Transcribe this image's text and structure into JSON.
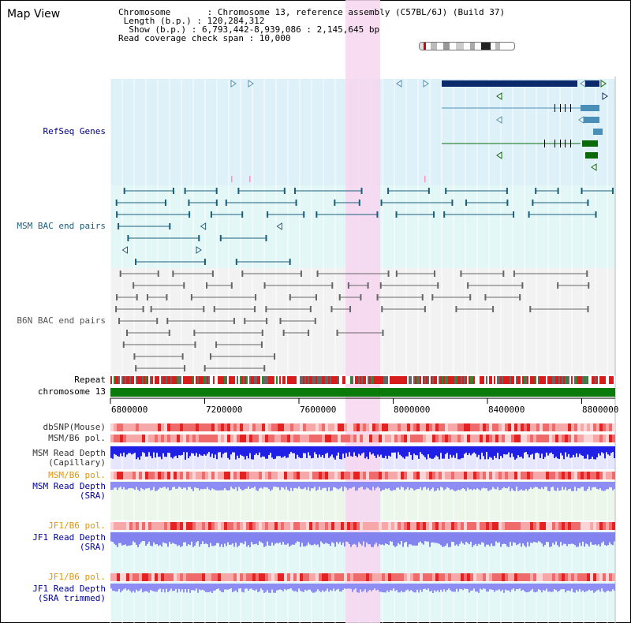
{
  "page": {
    "title": "Map View"
  },
  "header": {
    "chromosome_line": "Chromosome       : Chromosome 13, reference assembly (C57BL/6J) (Build 37)",
    "length_line": " Length (b.p.) : 120,284,312",
    "show_line": "  Show (b.p.) : 6,793,442-8,939,086 : 2,145,645 bp",
    "coverage_line": "Read coverage check span : 10,000"
  },
  "colors": {
    "refseq": "#0a2a6b",
    "refseq_light": "#4a8fb8",
    "refseq_green": "#0a6a0a",
    "msm": "#1a5f7a",
    "b6n": "#555555",
    "highlight": "#f7d6f0",
    "panel_blue": "#dff1f8",
    "panel_cyan": "#e4f7f7",
    "panel_gray": "#f1f1f1",
    "green_panel": "#e9f8e9"
  },
  "tracks": {
    "refseq": {
      "label": "RefSeq Genes",
      "color": "#00007f"
    },
    "msm_bac": {
      "label": "MSM BAC end pairs",
      "color": "#1a5f7a"
    },
    "b6n_bac": {
      "label": "B6N BAC end pairs",
      "color": "#555555"
    },
    "repeat": {
      "label": "Repeat"
    },
    "chrom": {
      "label": "chromosome 13"
    },
    "dbsnp": {
      "label": "dbSNP(Mouse)",
      "color": "#333333"
    },
    "msmb6_1": {
      "label": "MSM/B6 pol.",
      "color": "#333333"
    },
    "msm_cap": {
      "label": "MSM Read Depth\n(Capillary)",
      "color": "#333333"
    },
    "msmb6_2": {
      "label": "MSM/B6 pol.",
      "color": "#e69500"
    },
    "msm_sra": {
      "label": "MSM Read Depth\n(SRA)",
      "color": "#0000a0"
    },
    "jf1b6_1": {
      "label": "JF1/B6 pol.",
      "color": "#e69500"
    },
    "jf1_sra": {
      "label": "JF1 Read Depth\n(SRA)",
      "color": "#0000a0"
    },
    "jf1b6_2": {
      "label": "JF1/B6 pol.",
      "color": "#e69500"
    },
    "jf1_trim": {
      "label": "JF1 Read Depth\n(SRA trimmed)",
      "color": "#0000a0"
    }
  },
  "axis": {
    "ticks": [
      "6800000",
      "7200000",
      "7600000",
      "8000000",
      "8400000",
      "8800000"
    ]
  }
}
